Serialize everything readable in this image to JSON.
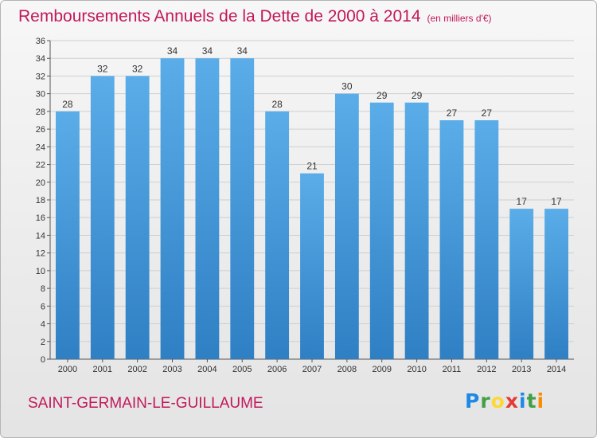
{
  "header": {
    "title": "Remboursements Annuels de la Dette de 2000 à 2014",
    "unit": "(en milliers d'€)"
  },
  "footer": {
    "commune": "SAINT-GERMAIN-LE-GUILLAUME",
    "logo_letters": [
      "P",
      "r",
      "o",
      "x",
      "i",
      "t",
      "i"
    ]
  },
  "colors": {
    "title": "#c2185b",
    "bar_top": "#5aade8",
    "bar_bottom": "#2f7fc4",
    "grid": "#cfcfcf"
  },
  "chart_data": {
    "type": "bar",
    "categories": [
      "2000",
      "2001",
      "2002",
      "2003",
      "2004",
      "2005",
      "2006",
      "2007",
      "2008",
      "2009",
      "2010",
      "2011",
      "2012",
      "2013",
      "2014"
    ],
    "values": [
      28,
      32,
      32,
      34,
      34,
      34,
      28,
      21,
      30,
      29,
      29,
      27,
      27,
      17,
      17
    ],
    "title": "Remboursements Annuels de la Dette de 2000 à 2014",
    "xlabel": "",
    "ylabel": "",
    "ylim": [
      0,
      36
    ],
    "ytick_step": 2,
    "grid": true,
    "data_labels": true
  }
}
